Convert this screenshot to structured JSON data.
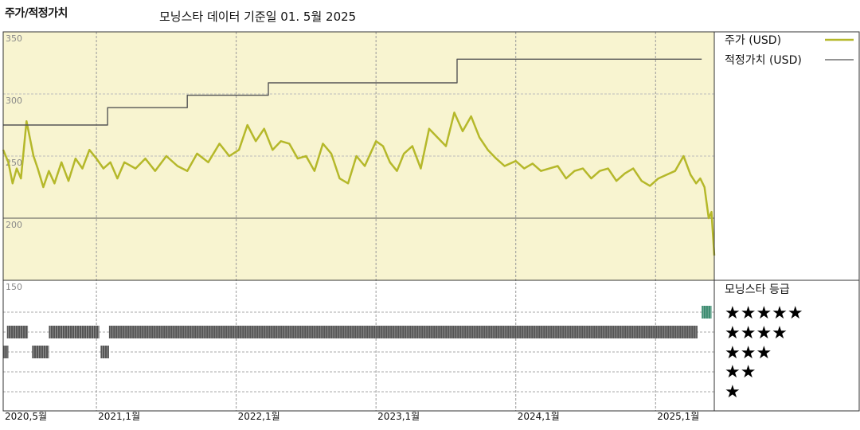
{
  "header": {
    "left_title": "주가/적정가치",
    "center_title": "모닝스타 데이터 기준일 01. 5월 2025"
  },
  "legend": {
    "price_label": "주가 (USD)",
    "fair_label": "적정가치 (USD)",
    "price_color": "#b5b82a",
    "fair_color": "#555555"
  },
  "rating_panel": {
    "title": "모닝스타 등급",
    "stars": [
      "★★★★★",
      "★★★★",
      "★★★",
      "★★",
      "★"
    ],
    "star_colors": {
      "bar": "#555555",
      "current": "#3a8a6e"
    }
  },
  "chart_data": {
    "type": "line",
    "title": "",
    "xlabel": "",
    "ylabel": "",
    "ylim": [
      150,
      350
    ],
    "y_ticks": [
      350,
      300,
      250,
      200,
      150
    ],
    "x_ticks": [
      "2020,5월",
      "2021,1월",
      "2022,1월",
      "2023,1월",
      "2024,1월",
      "2025,1월"
    ],
    "x_tick_dates": [
      2020.333,
      2021.0,
      2022.0,
      2023.0,
      2024.0,
      2025.0
    ],
    "x_range": [
      2020.333,
      2025.42
    ],
    "grid": true,
    "legend_position": "right",
    "series": [
      {
        "name": "주가 (USD)",
        "x": [
          2020.333,
          2020.37,
          2020.4,
          2020.43,
          2020.46,
          2020.5,
          2020.55,
          2020.58,
          2020.62,
          2020.66,
          2020.7,
          2020.75,
          2020.8,
          2020.85,
          2020.9,
          2020.95,
          2021.0,
          2021.05,
          2021.1,
          2021.15,
          2021.2,
          2021.28,
          2021.35,
          2021.42,
          2021.5,
          2021.58,
          2021.65,
          2021.72,
          2021.8,
          2021.88,
          2021.95,
          2022.02,
          2022.08,
          2022.14,
          2022.2,
          2022.26,
          2022.32,
          2022.38,
          2022.44,
          2022.5,
          2022.56,
          2022.62,
          2022.68,
          2022.74,
          2022.8,
          2022.86,
          2022.92,
          2023.0,
          2023.05,
          2023.1,
          2023.15,
          2023.2,
          2023.26,
          2023.32,
          2023.38,
          2023.44,
          2023.5,
          2023.56,
          2023.62,
          2023.68,
          2023.74,
          2023.8,
          2023.86,
          2023.92,
          2024.0,
          2024.06,
          2024.12,
          2024.18,
          2024.24,
          2024.3,
          2024.36,
          2024.42,
          2024.48,
          2024.54,
          2024.6,
          2024.66,
          2024.72,
          2024.78,
          2024.84,
          2024.9,
          2024.96,
          2025.02,
          2025.08,
          2025.14,
          2025.2,
          2025.25,
          2025.29,
          2025.32,
          2025.35,
          2025.38,
          2025.4,
          2025.42
        ],
        "y": [
          255,
          245,
          228,
          240,
          232,
          278,
          250,
          240,
          225,
          238,
          228,
          245,
          230,
          248,
          240,
          255,
          248,
          240,
          245,
          232,
          245,
          240,
          248,
          238,
          250,
          242,
          238,
          252,
          245,
          260,
          250,
          255,
          275,
          262,
          272,
          255,
          262,
          260,
          248,
          250,
          238,
          260,
          252,
          232,
          228,
          250,
          242,
          262,
          258,
          245,
          238,
          252,
          258,
          240,
          272,
          265,
          258,
          285,
          270,
          282,
          265,
          255,
          248,
          242,
          246,
          240,
          244,
          238,
          240,
          242,
          232,
          238,
          240,
          232,
          238,
          240,
          230,
          236,
          240,
          230,
          226,
          232,
          235,
          238,
          250,
          235,
          228,
          232,
          225,
          200,
          205,
          170
        ]
      },
      {
        "name": "적정가치 (USD)",
        "x": [
          2020.333,
          2021.08,
          2021.08,
          2021.65,
          2021.65,
          2022.23,
          2022.23,
          2023.58,
          2023.58,
          2025.33
        ],
        "y": [
          275,
          275,
          289,
          289,
          299,
          299,
          309,
          309,
          328,
          328
        ]
      }
    ],
    "ratings": [
      {
        "stars": 4,
        "start": 2020.36,
        "end": 2020.51
      },
      {
        "stars": 4,
        "start": 2020.66,
        "end": 2021.02
      },
      {
        "stars": 4,
        "start": 2021.09,
        "end": 2025.3
      },
      {
        "stars": 3,
        "start": 2020.333,
        "end": 2020.37
      },
      {
        "stars": 3,
        "start": 2020.54,
        "end": 2020.66
      },
      {
        "stars": 3,
        "start": 2021.03,
        "end": 2021.09
      },
      {
        "stars": 5,
        "start": 2025.33,
        "end": 2025.4
      }
    ]
  }
}
